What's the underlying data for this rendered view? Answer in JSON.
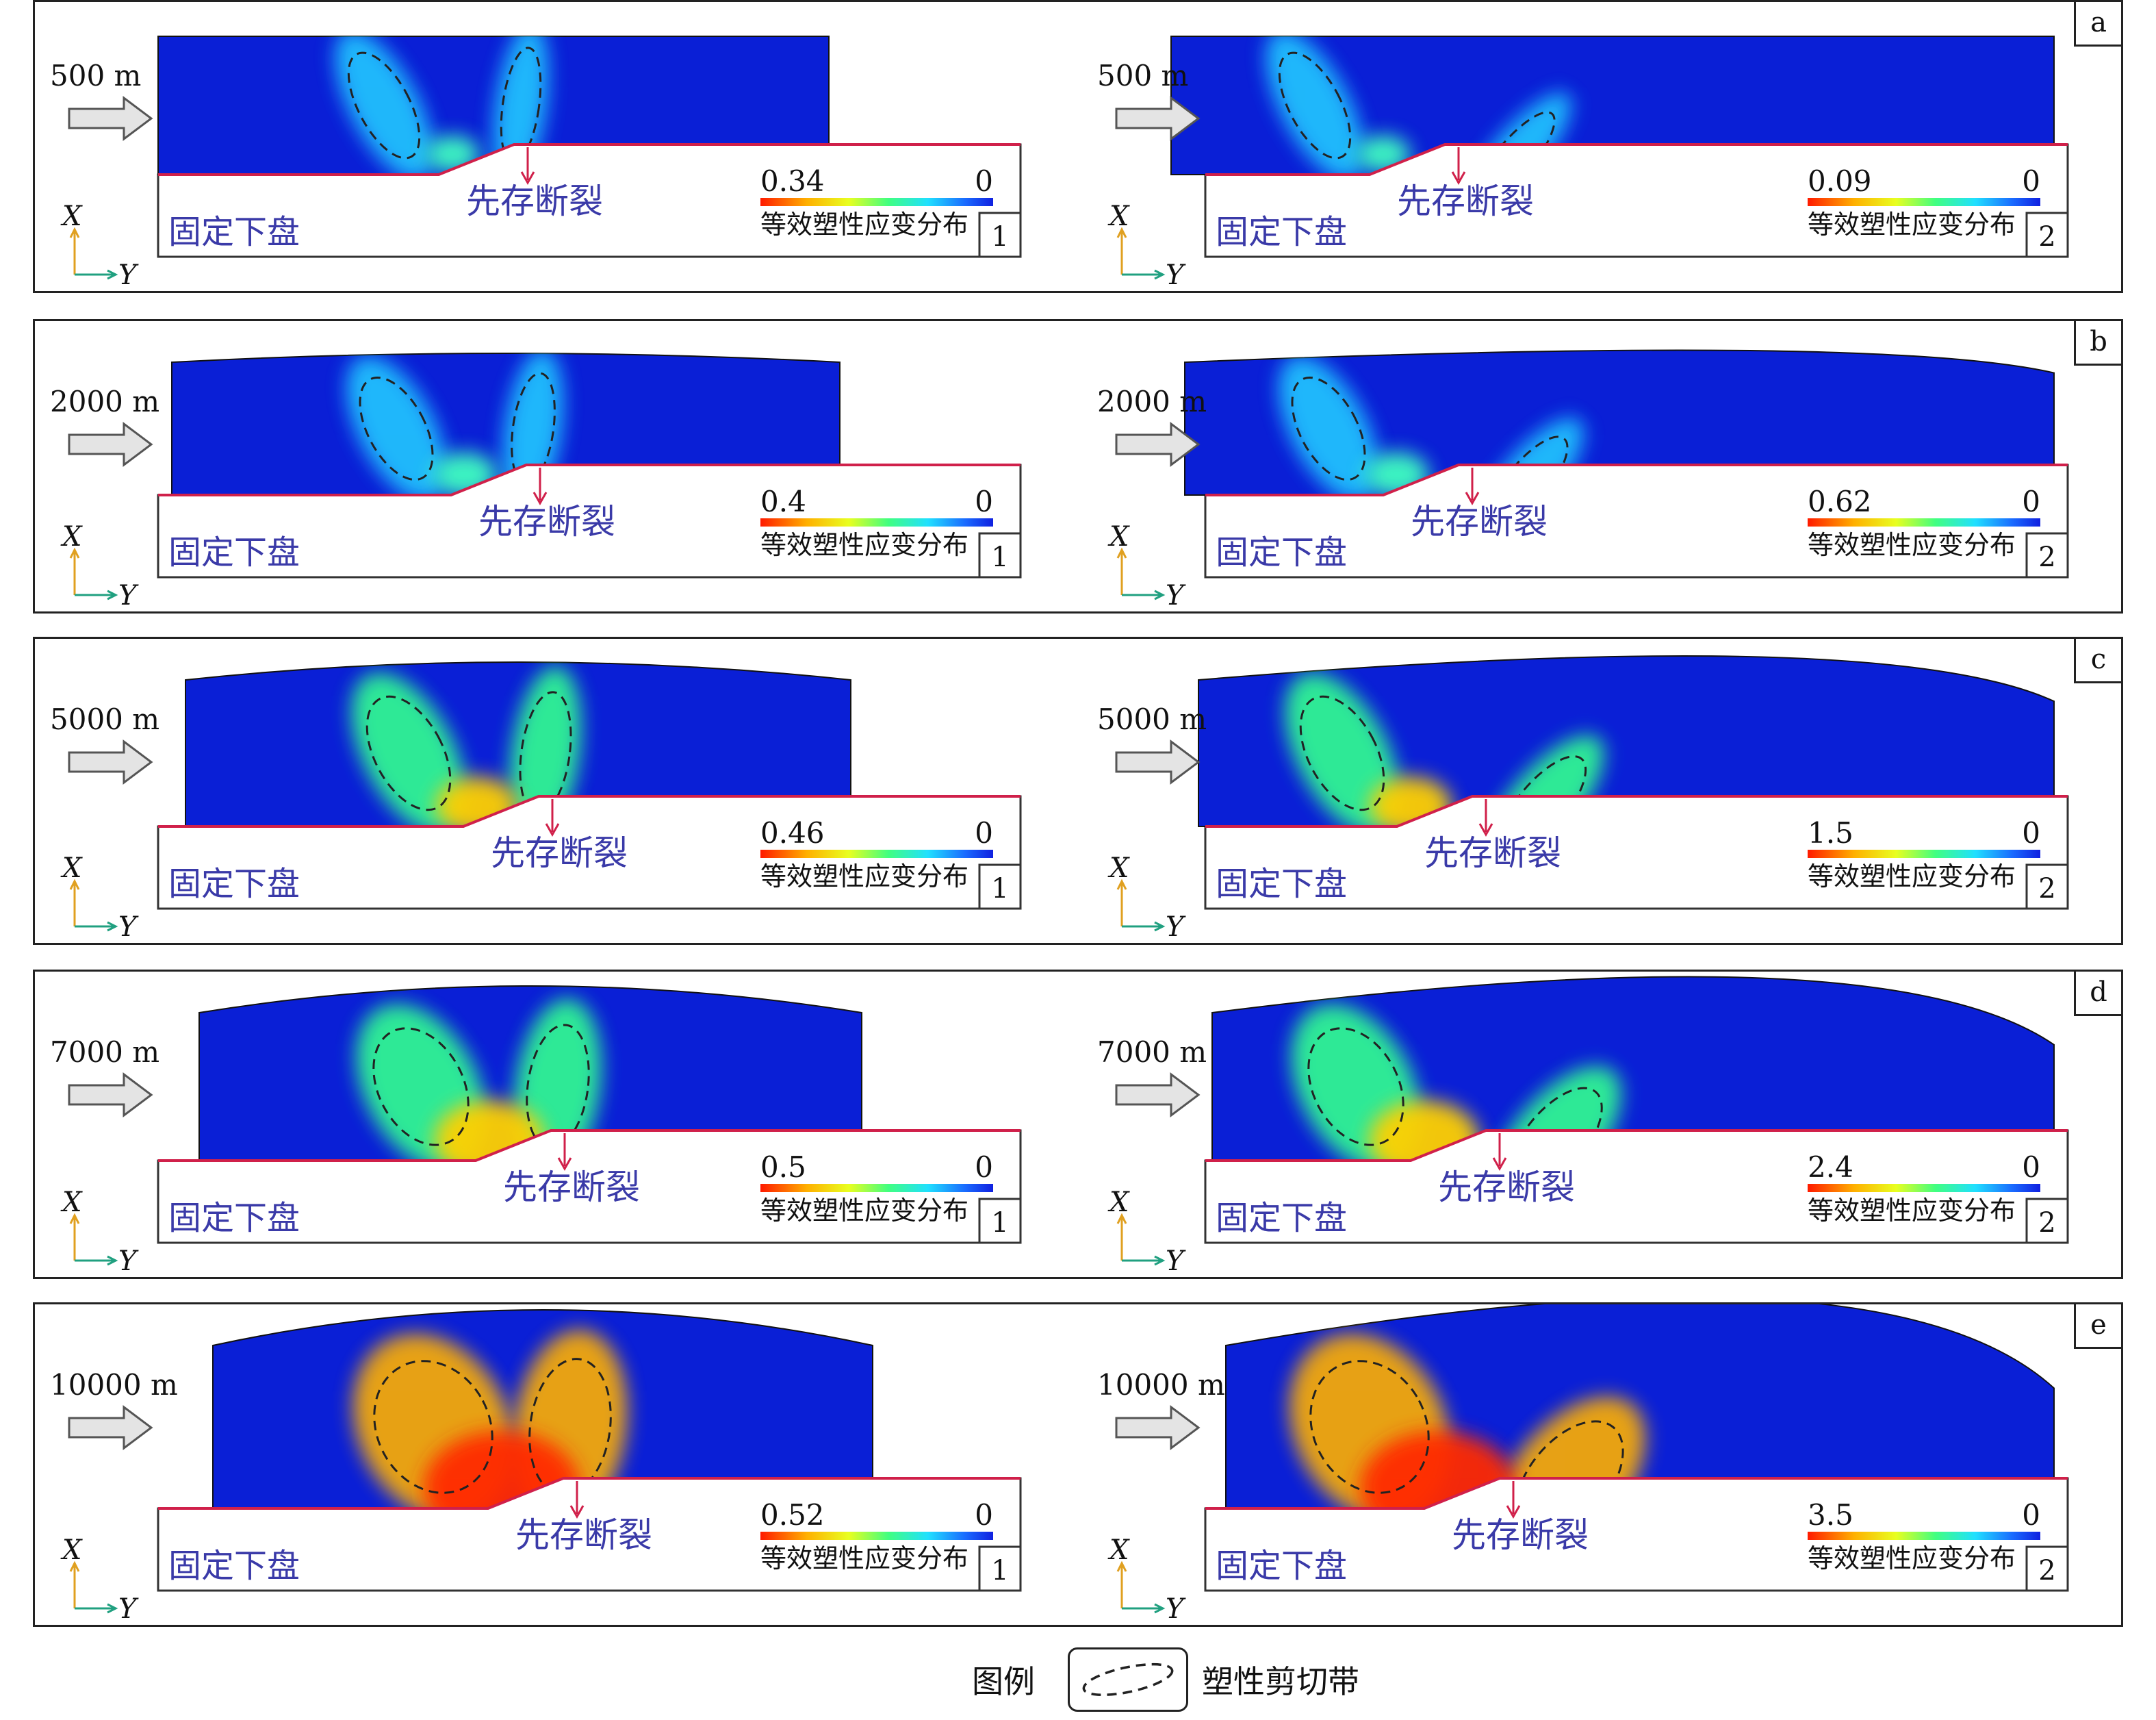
{
  "rows": [
    {
      "letter": "a",
      "panels": [
        {
          "distance": "500 m",
          "hanging": "固定下盘",
          "fault": "先存断裂",
          "max": "0.34",
          "min": "0",
          "cbar_label": "等效塑性应变分布",
          "index": "1"
        },
        {
          "distance": "500 m",
          "hanging": "固定下盘",
          "fault": "先存断裂",
          "max": "0.09",
          "min": "0",
          "cbar_label": "等效塑性应变分布",
          "index": "2"
        }
      ]
    },
    {
      "letter": "b",
      "panels": [
        {
          "distance": "2000 m",
          "hanging": "固定下盘",
          "fault": "先存断裂",
          "max": "0.4",
          "min": "0",
          "cbar_label": "等效塑性应变分布",
          "index": "1"
        },
        {
          "distance": "2000 m",
          "hanging": "固定下盘",
          "fault": "先存断裂",
          "max": "0.62",
          "min": "0",
          "cbar_label": "等效塑性应变分布",
          "index": "2"
        }
      ]
    },
    {
      "letter": "c",
      "panels": [
        {
          "distance": "5000 m",
          "hanging": "固定下盘",
          "fault": "先存断裂",
          "max": "0.46",
          "min": "0",
          "cbar_label": "等效塑性应变分布",
          "index": "1"
        },
        {
          "distance": "5000 m",
          "hanging": "固定下盘",
          "fault": "先存断裂",
          "max": "1.5",
          "min": "0",
          "cbar_label": "等效塑性应变分布",
          "index": "2"
        }
      ]
    },
    {
      "letter": "d",
      "panels": [
        {
          "distance": "7000 m",
          "hanging": "固定下盘",
          "fault": "先存断裂",
          "max": "0.5",
          "min": "0",
          "cbar_label": "等效塑性应变分布",
          "index": "1"
        },
        {
          "distance": "7000 m",
          "hanging": "固定下盘",
          "fault": "先存断裂",
          "max": "2.4",
          "min": "0",
          "cbar_label": "等效塑性应变分布",
          "index": "2"
        }
      ]
    },
    {
      "letter": "e",
      "panels": [
        {
          "distance": "10000 m",
          "hanging": "固定下盘",
          "fault": "先存断裂",
          "max": "0.52",
          "min": "0",
          "cbar_label": "等效塑性应变分布",
          "index": "1"
        },
        {
          "distance": "10000 m",
          "hanging": "固定下盘",
          "fault": "先存断裂",
          "max": "3.5",
          "min": "0",
          "cbar_label": "等效塑性应变分布",
          "index": "2"
        }
      ]
    }
  ],
  "axis": {
    "x": "X",
    "y": "Y"
  },
  "legend": {
    "label": "图例",
    "item": "塑性剪切带"
  },
  "colors": {
    "background_blue": "#0a1fd6",
    "fault_line": "#d0204a"
  }
}
